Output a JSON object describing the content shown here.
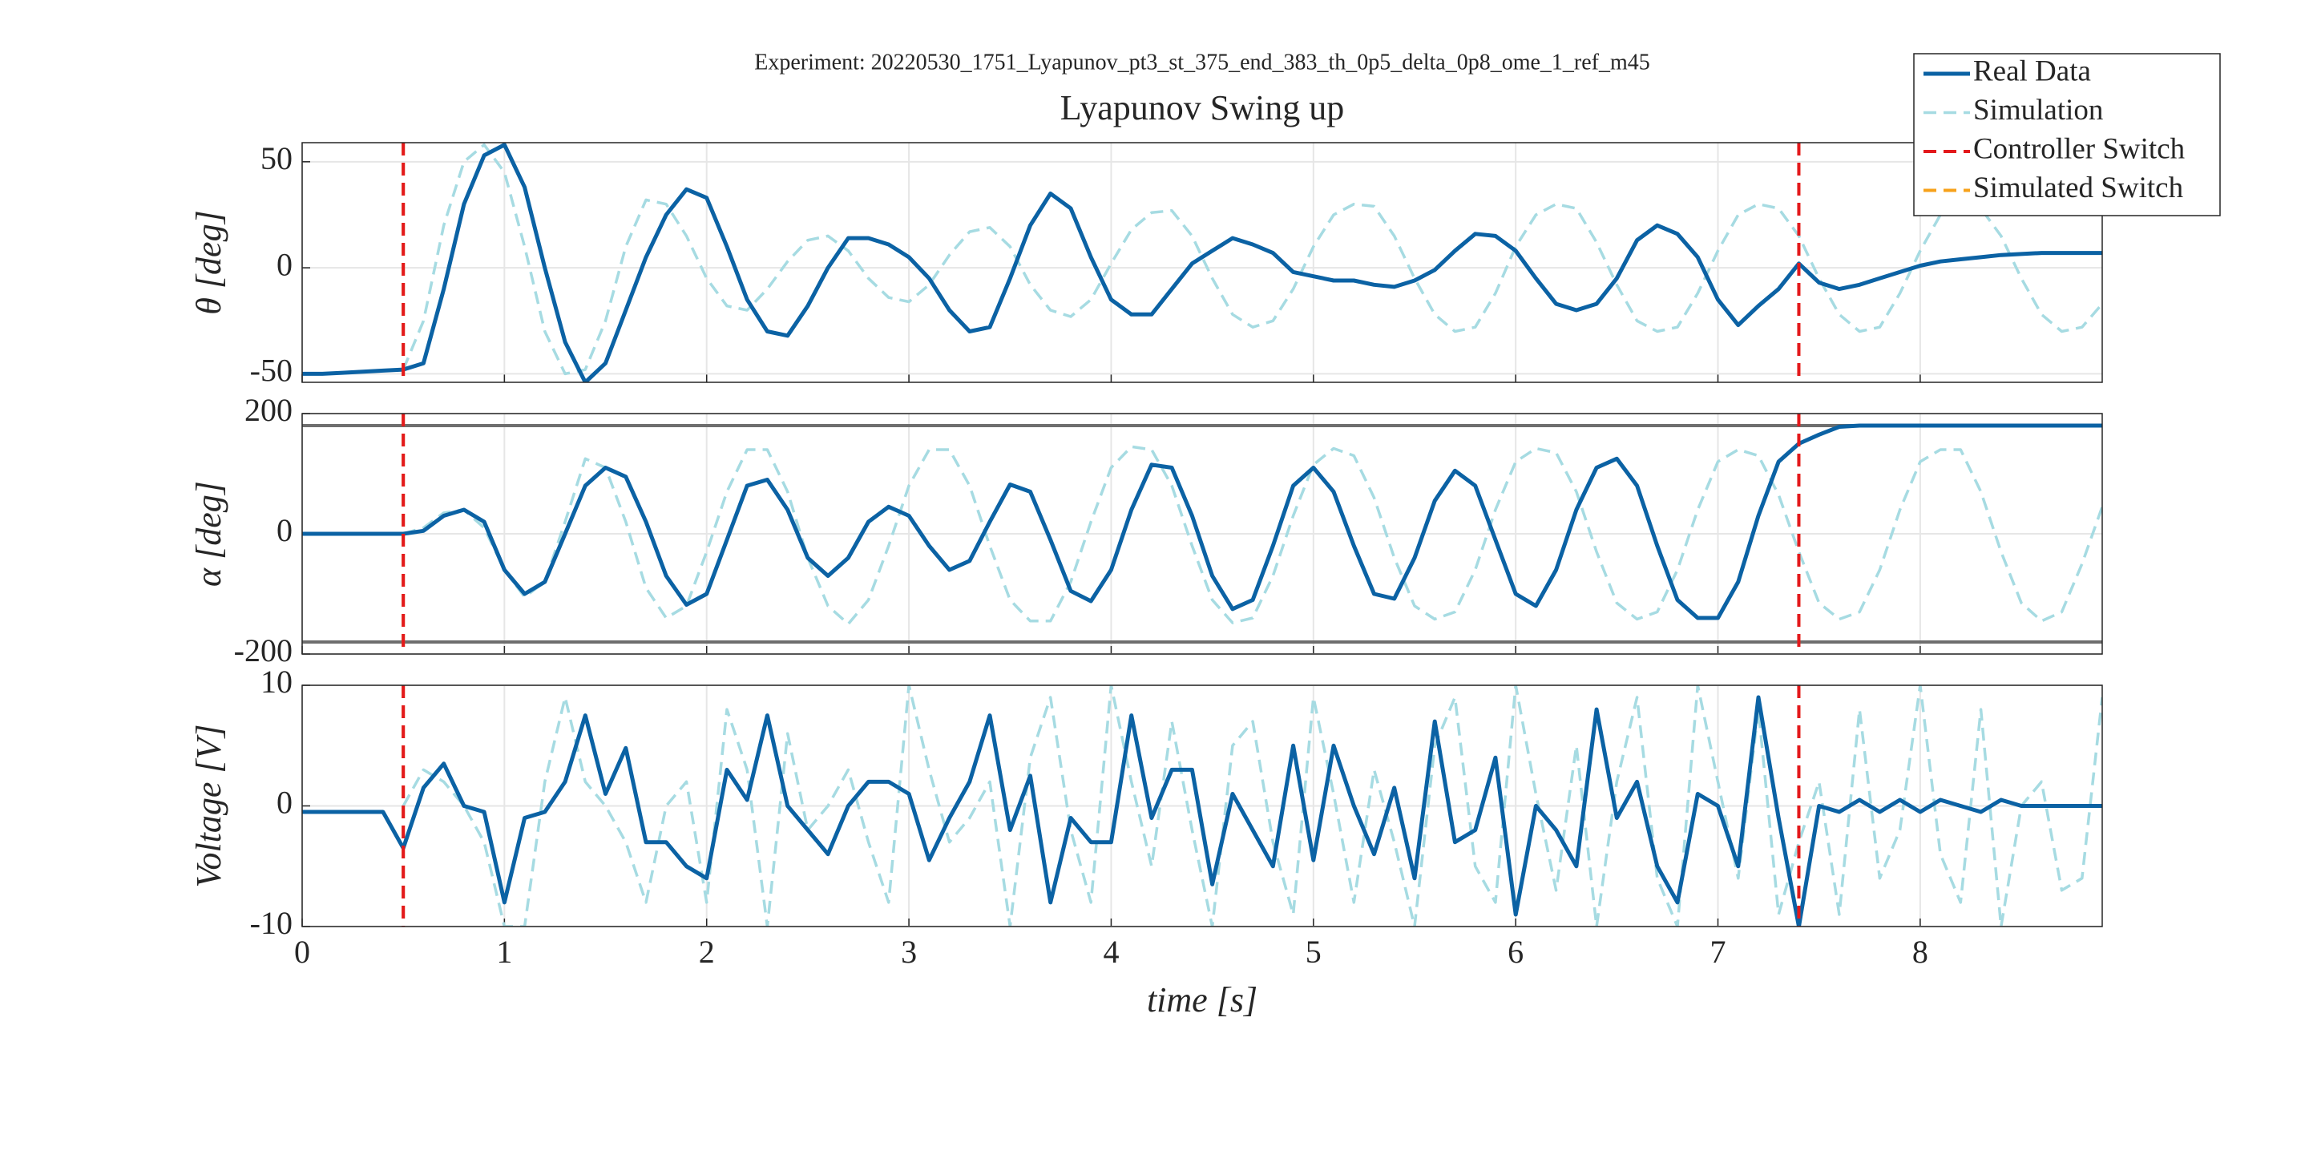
{
  "chart_data": [
    {
      "type": "line",
      "suptitle": "Experiment: 20220530_1751_Lyapunov_pt3_st_375_end_383_th_0p5_delta_0p8_ome_1_ref_m45",
      "title": "Lyapunov Swing up",
      "ylabel": "θ [deg]",
      "legend": "upper right",
      "grid": true,
      "xlim": [
        0,
        8.9
      ],
      "xticks": [
        0,
        1,
        2,
        3,
        4,
        5,
        6,
        7,
        8
      ],
      "ylim": [
        -54,
        59
      ],
      "yticks": [
        -50,
        0,
        50
      ],
      "x": [
        0,
        0.1,
        0.2,
        0.3,
        0.4,
        0.5,
        0.6,
        0.7,
        0.8,
        0.9,
        1,
        1.1,
        1.2,
        1.3,
        1.4,
        1.5,
        1.6,
        1.7,
        1.8,
        1.9,
        2,
        2.1,
        2.2,
        2.3,
        2.4,
        2.5,
        2.6,
        2.7,
        2.8,
        2.9,
        3,
        3.1,
        3.2,
        3.3,
        3.4,
        3.5,
        3.6,
        3.7,
        3.8,
        3.9,
        4,
        4.1,
        4.2,
        4.3,
        4.4,
        4.5,
        4.6,
        4.7,
        4.8,
        4.9,
        5,
        5.1,
        5.2,
        5.3,
        5.4,
        5.5,
        5.6,
        5.7,
        5.8,
        5.9,
        6,
        6.1,
        6.2,
        6.3,
        6.4,
        6.5,
        6.6,
        6.7,
        6.8,
        6.9,
        7,
        7.1,
        7.2,
        7.3,
        7.4,
        7.5,
        7.6,
        7.7,
        7.8,
        7.9,
        8,
        8.1,
        8.2,
        8.3,
        8.4,
        8.5,
        8.6,
        8.7,
        8.8,
        8.9
      ],
      "series": [
        {
          "name": "Real Data",
          "color": "#0b62a4",
          "dash": "solid",
          "values": [
            -50,
            -50,
            -49.5,
            -49,
            -48.5,
            -48,
            -45,
            -10,
            30,
            53,
            58,
            38,
            0,
            -35,
            -54,
            -45,
            -20,
            5,
            25,
            37,
            33,
            10,
            -15,
            -30,
            -32,
            -18,
            0,
            14,
            14,
            11,
            5,
            -5,
            -20,
            -30,
            -28,
            -5,
            20,
            35,
            28,
            5,
            -15,
            -22,
            -22,
            -10,
            2,
            8,
            14,
            11,
            7,
            -2,
            -4,
            -6,
            -6,
            -8,
            -9,
            -6,
            -1,
            8,
            16,
            15,
            8,
            -5,
            -17,
            -20,
            -17,
            -5,
            13,
            20,
            16,
            5,
            -15,
            -27,
            -18,
            -10,
            2,
            -7,
            -10,
            -8,
            -5,
            -2,
            1,
            3,
            4,
            5,
            6,
            6.5,
            7,
            7,
            7,
            7
          ]
        },
        {
          "name": "Simulation",
          "color": "#a6dbe2",
          "dash": "dashed",
          "values": [
            null,
            null,
            null,
            null,
            null,
            -48,
            -25,
            20,
            50,
            58,
            45,
            10,
            -30,
            -50,
            -48,
            -25,
            10,
            32,
            30,
            15,
            -5,
            -18,
            -20,
            -10,
            3,
            13,
            15,
            8,
            -5,
            -14,
            -16,
            -8,
            6,
            17,
            19,
            10,
            -8,
            -20,
            -23,
            -15,
            2,
            18,
            26,
            27,
            15,
            -5,
            -22,
            -28,
            -25,
            -10,
            10,
            25,
            30,
            29,
            15,
            -5,
            -22,
            -30,
            -28,
            -12,
            10,
            25,
            30,
            28,
            12,
            -8,
            -25,
            -30,
            -28,
            -12,
            8,
            25,
            30,
            28,
            15,
            -5,
            -22,
            -30,
            -28,
            -12,
            8,
            25,
            30,
            28,
            15,
            -5,
            -22,
            -30,
            -28,
            -17
          ]
        }
      ],
      "vlines": [
        {
          "name": "Controller Switch",
          "color": "#e3191c",
          "x": [
            0.5,
            7.4
          ]
        },
        {
          "name": "Simulated Switch",
          "color": "#f7a21b",
          "x": [
            0.5,
            7.4
          ]
        }
      ]
    },
    {
      "type": "line",
      "ylabel": "α [deg]",
      "grid": true,
      "xlim": [
        0,
        8.9
      ],
      "xticks": [
        0,
        1,
        2,
        3,
        4,
        5,
        6,
        7,
        8
      ],
      "ylim": [
        -200,
        200
      ],
      "yticks": [
        -200,
        0,
        200
      ],
      "hlines": {
        "color": "#6e6e6e",
        "values": [
          180,
          -180
        ]
      },
      "x": [
        0,
        0.1,
        0.2,
        0.3,
        0.4,
        0.5,
        0.6,
        0.7,
        0.8,
        0.9,
        1,
        1.1,
        1.2,
        1.3,
        1.4,
        1.5,
        1.6,
        1.7,
        1.8,
        1.9,
        2,
        2.1,
        2.2,
        2.3,
        2.4,
        2.5,
        2.6,
        2.7,
        2.8,
        2.9,
        3,
        3.1,
        3.2,
        3.3,
        3.4,
        3.5,
        3.6,
        3.7,
        3.8,
        3.9,
        4,
        4.1,
        4.2,
        4.3,
        4.4,
        4.5,
        4.6,
        4.7,
        4.8,
        4.9,
        5,
        5.1,
        5.2,
        5.3,
        5.4,
        5.5,
        5.6,
        5.7,
        5.8,
        5.9,
        6,
        6.1,
        6.2,
        6.3,
        6.4,
        6.5,
        6.6,
        6.7,
        6.8,
        6.9,
        7,
        7.1,
        7.2,
        7.3,
        7.4,
        7.5,
        7.6,
        7.7,
        7.8,
        7.9,
        8,
        8.1,
        8.2,
        8.3,
        8.4,
        8.5,
        8.6,
        8.7,
        8.8,
        8.9
      ],
      "series": [
        {
          "color": "#0b62a4",
          "dash": "solid",
          "values": [
            0,
            0,
            0,
            0,
            0,
            0,
            5,
            30,
            40,
            20,
            -60,
            -100,
            -80,
            0,
            80,
            110,
            95,
            20,
            -70,
            -118,
            -100,
            -10,
            80,
            90,
            40,
            -40,
            -70,
            -40,
            20,
            45,
            30,
            -20,
            -60,
            -45,
            20,
            82,
            70,
            -10,
            -95,
            -112,
            -60,
            40,
            115,
            110,
            30,
            -70,
            -125,
            -110,
            -20,
            80,
            110,
            70,
            -20,
            -100,
            -108,
            -40,
            55,
            105,
            80,
            -10,
            -100,
            -120,
            -60,
            40,
            110,
            125,
            80,
            -20,
            -110,
            -140,
            -140,
            -80,
            30,
            120,
            150,
            165,
            178,
            180,
            180,
            180,
            180,
            180,
            180,
            180,
            180,
            180,
            180,
            180,
            180,
            180
          ]
        },
        {
          "color": "#a6dbe2",
          "dash": "dashed",
          "values": [
            null,
            null,
            null,
            null,
            null,
            0,
            10,
            35,
            40,
            10,
            -60,
            -105,
            -80,
            20,
            125,
            110,
            20,
            -90,
            -140,
            -120,
            -30,
            70,
            140,
            140,
            70,
            -40,
            -120,
            -150,
            -110,
            -20,
            80,
            140,
            140,
            80,
            -20,
            -110,
            -145,
            -145,
            -80,
            20,
            110,
            145,
            140,
            80,
            -20,
            -110,
            -148,
            -140,
            -70,
            30,
            115,
            142,
            130,
            60,
            -40,
            -120,
            -142,
            -130,
            -60,
            40,
            120,
            142,
            135,
            70,
            -30,
            -115,
            -142,
            -130,
            -60,
            40,
            120,
            140,
            130,
            65,
            -30,
            -115,
            -142,
            -130,
            -60,
            40,
            120,
            140,
            140,
            70,
            -30,
            -115,
            -145,
            -130,
            -50,
            45
          ]
        }
      ],
      "vlines": [
        {
          "color": "#e3191c",
          "x": [
            0.5,
            7.4
          ]
        },
        {
          "color": "#f7a21b",
          "x": [
            0.5,
            7.4
          ]
        }
      ]
    },
    {
      "type": "line",
      "ylabel": "Voltage [V]",
      "xlabel": "time [s]",
      "grid": true,
      "xlim": [
        0,
        8.9
      ],
      "xticks": [
        0,
        1,
        2,
        3,
        4,
        5,
        6,
        7,
        8
      ],
      "ylim": [
        -10,
        10
      ],
      "yticks": [
        -10,
        0,
        10
      ],
      "x": [
        0,
        0.1,
        0.2,
        0.3,
        0.4,
        0.5,
        0.6,
        0.7,
        0.8,
        0.9,
        1,
        1.1,
        1.2,
        1.3,
        1.4,
        1.5,
        1.6,
        1.7,
        1.8,
        1.9,
        2,
        2.1,
        2.2,
        2.3,
        2.4,
        2.5,
        2.6,
        2.7,
        2.8,
        2.9,
        3,
        3.1,
        3.2,
        3.3,
        3.4,
        3.5,
        3.6,
        3.7,
        3.8,
        3.9,
        4,
        4.1,
        4.2,
        4.3,
        4.4,
        4.5,
        4.6,
        4.7,
        4.8,
        4.9,
        5,
        5.1,
        5.2,
        5.3,
        5.4,
        5.5,
        5.6,
        5.7,
        5.8,
        5.9,
        6,
        6.1,
        6.2,
        6.3,
        6.4,
        6.5,
        6.6,
        6.7,
        6.8,
        6.9,
        7,
        7.1,
        7.2,
        7.3,
        7.4,
        7.5,
        7.6,
        7.7,
        7.8,
        7.9,
        8,
        8.1,
        8.2,
        8.3,
        8.4,
        8.5,
        8.6,
        8.7,
        8.8,
        8.9
      ],
      "series": [
        {
          "color": "#0b62a4",
          "dash": "solid",
          "values": [
            -0.5,
            -0.5,
            -0.5,
            -0.5,
            -0.5,
            -3.5,
            1.5,
            3.5,
            0,
            -0.5,
            -8,
            -1,
            -0.5,
            2,
            7.5,
            1,
            4.8,
            -3,
            -3,
            -5,
            -6,
            3,
            0.5,
            7.5,
            0,
            -2,
            -4,
            0,
            2,
            2,
            1,
            -4.5,
            -1,
            2,
            7.5,
            -2,
            2.5,
            -8,
            -1,
            -3,
            -3,
            7.5,
            -1,
            3,
            3,
            -6.5,
            1,
            -2,
            -5,
            5,
            -4.5,
            5,
            0,
            -4,
            1.5,
            -6,
            7,
            -3,
            -2,
            4,
            -9,
            0,
            -2,
            -5,
            8,
            -1,
            2,
            -5,
            -8,
            1,
            0,
            -5,
            9,
            -1,
            -10,
            0,
            -0.5,
            0.5,
            -0.5,
            0.5,
            -0.5,
            0.5,
            0,
            -0.5,
            0.5,
            0,
            0,
            0,
            0,
            0
          ]
        },
        {
          "color": "#a6dbe2",
          "dash": "dashed",
          "values": [
            null,
            null,
            null,
            null,
            null,
            0,
            3,
            2,
            0,
            -3,
            -10,
            -10,
            2,
            9,
            2,
            0,
            -3,
            -8,
            0,
            2,
            -8,
            8,
            3,
            -10,
            6,
            -2,
            0,
            3,
            -3,
            -8,
            10,
            3,
            -3,
            -1,
            2,
            -10,
            4,
            9,
            -2,
            -8,
            10,
            2,
            -5,
            7,
            -2,
            -10,
            5,
            7,
            -3,
            -9,
            9,
            1,
            -8,
            3,
            -3,
            -10,
            5,
            9,
            -5,
            -8,
            10,
            1,
            -7,
            5,
            -10,
            2,
            9,
            -6,
            -10,
            10,
            2,
            -6,
            8,
            -9,
            -3,
            2,
            -9,
            8,
            -6,
            -2,
            10,
            -4,
            -8,
            8,
            -10,
            0,
            2,
            -7,
            -6,
            9
          ]
        }
      ],
      "vlines": [
        {
          "color": "#e3191c",
          "x": [
            0.5,
            7.4
          ]
        },
        {
          "color": "#f7a21b",
          "x": [
            0.5,
            7.4
          ]
        }
      ]
    }
  ]
}
